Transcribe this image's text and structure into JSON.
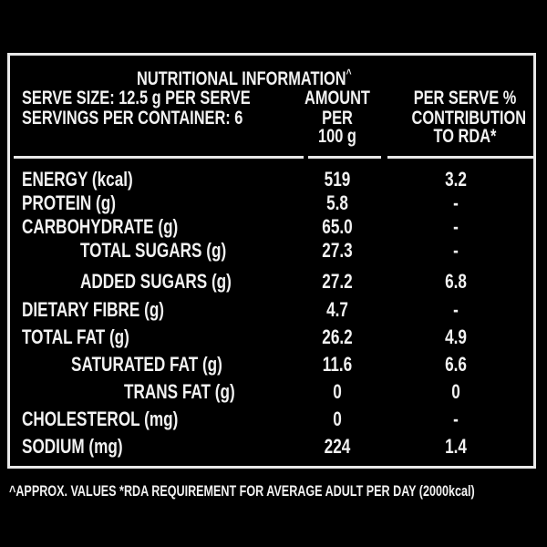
{
  "title": "NUTRITIONAL INFORMATION",
  "title_mark": "^",
  "serve_size": "SERVE SIZE: 12.5 g PER SERVE",
  "servings": "SERVINGS PER CONTAINER: 6",
  "col_amount": [
    "AMOUNT",
    "PER",
    "100 g"
  ],
  "col_rda": [
    "PER SERVE %",
    "CONTRIBUTION",
    "TO RDA*"
  ],
  "rows": [
    {
      "label": "ENERGY (kcal)",
      "amount": "519",
      "rda": "3.2"
    },
    {
      "label": "PROTEIN (g)",
      "amount": "5.8",
      "rda": "-"
    },
    {
      "label": "CARBOHYDRATE (g)",
      "amount": "65.0",
      "rda": "-"
    },
    {
      "label": "TOTAL SUGARS (g)",
      "amount": "27.3",
      "rda": "-"
    },
    {
      "label": "ADDED SUGARS (g)",
      "amount": "27.2",
      "rda": "6.8"
    },
    {
      "label": "DIETARY FIBRE (g)",
      "amount": "4.7",
      "rda": "-"
    },
    {
      "label": "TOTAL FAT (g)",
      "amount": "26.2",
      "rda": "4.9"
    },
    {
      "label": "SATURATED FAT (g)",
      "amount": "11.6",
      "rda": "6.6"
    },
    {
      "label": "TRANS FAT (g)",
      "amount": "0",
      "rda": "0"
    },
    {
      "label": "CHOLESTEROL (mg)",
      "amount": "0",
      "rda": "-"
    },
    {
      "label": "SODIUM  (mg)",
      "amount": "224",
      "rda": "1.4"
    }
  ],
  "footnote": "^APPROX. VALUES *RDA REQUIREMENT FOR AVERAGE ADULT PER DAY (2000kcal)",
  "colors": {
    "background": "#000000",
    "text": "#f2f2f2"
  }
}
